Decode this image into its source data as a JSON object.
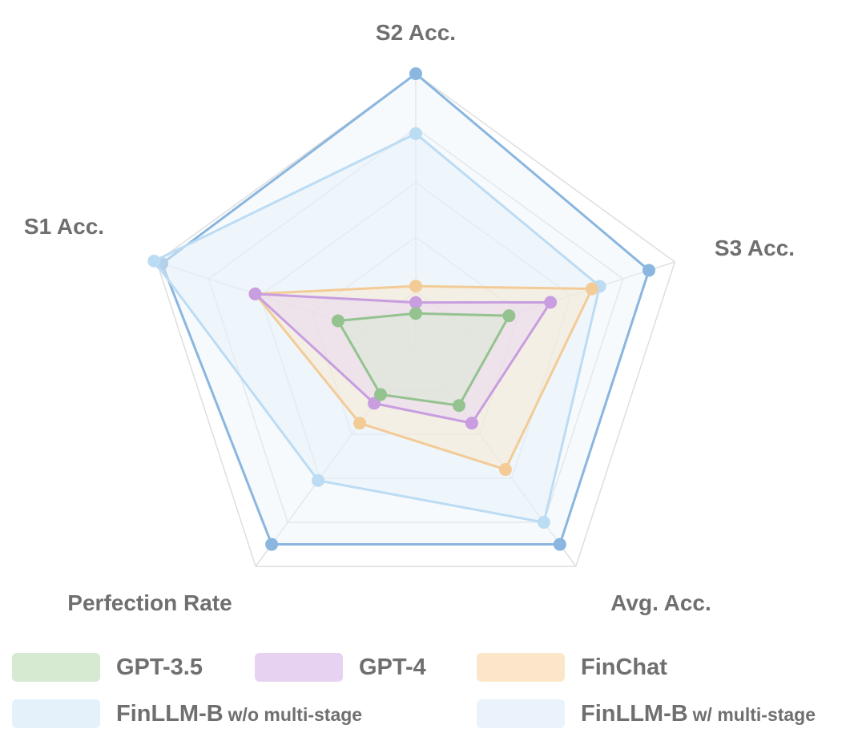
{
  "chart_data": {
    "type": "radar",
    "axes": [
      "S2 Acc.",
      "S3 Acc.",
      "Avg. Acc.",
      "Perfection Rate",
      "S1 Acc."
    ],
    "rmax": 1.0,
    "grid_levels": 5,
    "series": [
      {
        "name": "GPT-3.5",
        "suffix": "",
        "color": "#94c38f",
        "fill": "#d5ead1",
        "values": [
          0.12,
          0.36,
          0.27,
          0.22,
          0.3
        ]
      },
      {
        "name": "GPT-4",
        "suffix": "",
        "color": "#c89ee0",
        "fill": "#e7d3f1",
        "values": [
          0.16,
          0.52,
          0.35,
          0.26,
          0.62
        ]
      },
      {
        "name": "FinChat",
        "suffix": "",
        "color": "#f3cb96",
        "fill": "#fbe6c9",
        "values": [
          0.22,
          0.68,
          0.56,
          0.35,
          0.62
        ]
      },
      {
        "name": "FinLLM-B",
        "suffix": "w/o multi-stage",
        "color": "#bcdcf4",
        "fill": "#e4f1fb",
        "values": [
          0.78,
          0.71,
          0.8,
          0.61,
          1.01
        ]
      },
      {
        "name": "FinLLM-B",
        "suffix": "w/ multi-stage",
        "color": "#8ab6df",
        "fill": "#eaf3fb",
        "values": [
          1.0,
          0.9,
          0.9,
          0.9,
          0.98
        ]
      }
    ]
  }
}
